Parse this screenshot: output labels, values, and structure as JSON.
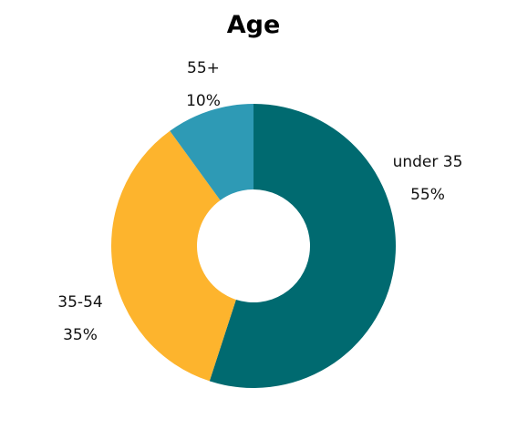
{
  "chart_data": {
    "type": "pie",
    "variant": "donut",
    "title": "Age",
    "categories": [
      "under 35",
      "35-54",
      "55+"
    ],
    "values": [
      55,
      35,
      10
    ],
    "value_labels": [
      "55%",
      "35%",
      "10%"
    ],
    "colors": [
      "#006A70",
      "#FDB42D",
      "#2E9AB5"
    ],
    "legend": "none"
  }
}
